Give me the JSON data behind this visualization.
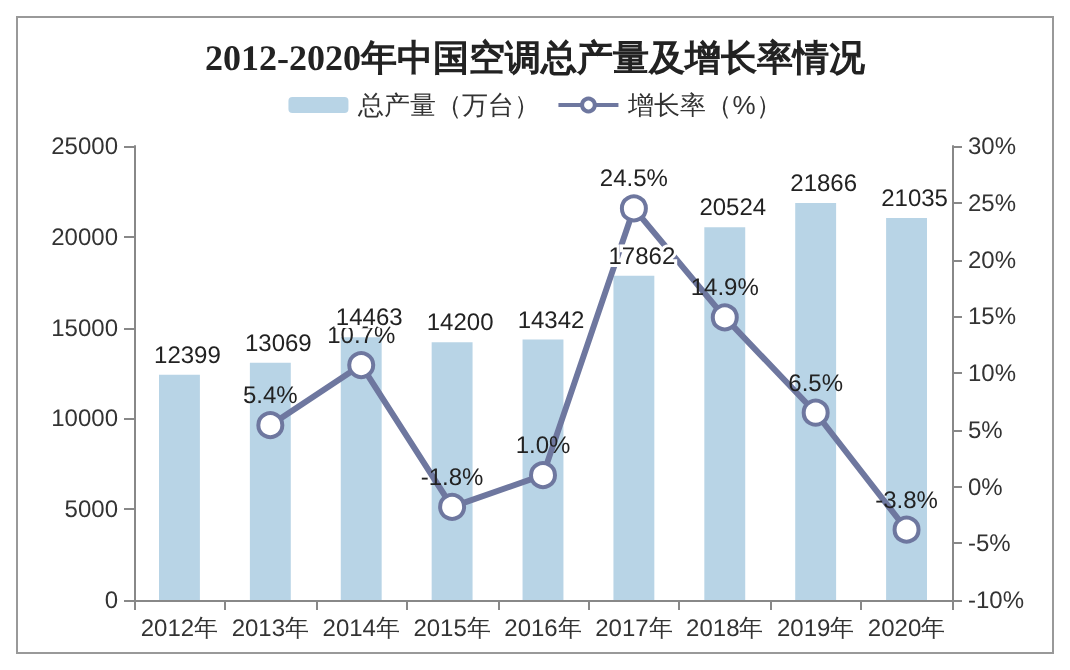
{
  "chart_data": {
    "type": "bar",
    "title": "2012-2020年中国空调总产量及增长率情况",
    "categories": [
      "2012年",
      "2013年",
      "2014年",
      "2015年",
      "2016年",
      "2017年",
      "2018年",
      "2019年",
      "2020年"
    ],
    "series": [
      {
        "name": "总产量（万台）",
        "color": "#b8d4e6",
        "values": [
          12399,
          13069,
          14463,
          14200,
          14342,
          17862,
          20524,
          21866,
          21035
        ],
        "value_labels": [
          "12399",
          "13069",
          "14463",
          "14200",
          "14342",
          "17862",
          "20524",
          "21866",
          "21035"
        ]
      },
      {
        "name": "增长率（%）",
        "type": "line",
        "axis": "y2",
        "color": "#6e779f",
        "marker": "circle",
        "values": [
          null,
          5.4,
          10.7,
          -1.8,
          1.0,
          24.5,
          14.9,
          6.5,
          -3.8
        ],
        "value_labels": [
          null,
          "5.4%",
          "10.7%",
          "-1.8%",
          "1.0%",
          "24.5%",
          "14.9%",
          "6.5%",
          "-3.8%"
        ]
      }
    ],
    "ylim": [
      0,
      25000
    ],
    "yticks": [
      0,
      5000,
      10000,
      15000,
      20000,
      25000
    ],
    "y2lim": [
      -10,
      30
    ],
    "y2ticks": [
      {
        "value": -10,
        "label": "-10%"
      },
      {
        "value": -5,
        "label": "-5%"
      },
      {
        "value": 0,
        "label": "0%"
      },
      {
        "value": 5,
        "label": "5%"
      },
      {
        "value": 10,
        "label": "10%"
      },
      {
        "value": 15,
        "label": "15%"
      },
      {
        "value": 20,
        "label": "20%"
      },
      {
        "value": 25,
        "label": "25%"
      },
      {
        "value": 30,
        "label": "30%"
      }
    ],
    "legend": "top",
    "grid": false
  }
}
